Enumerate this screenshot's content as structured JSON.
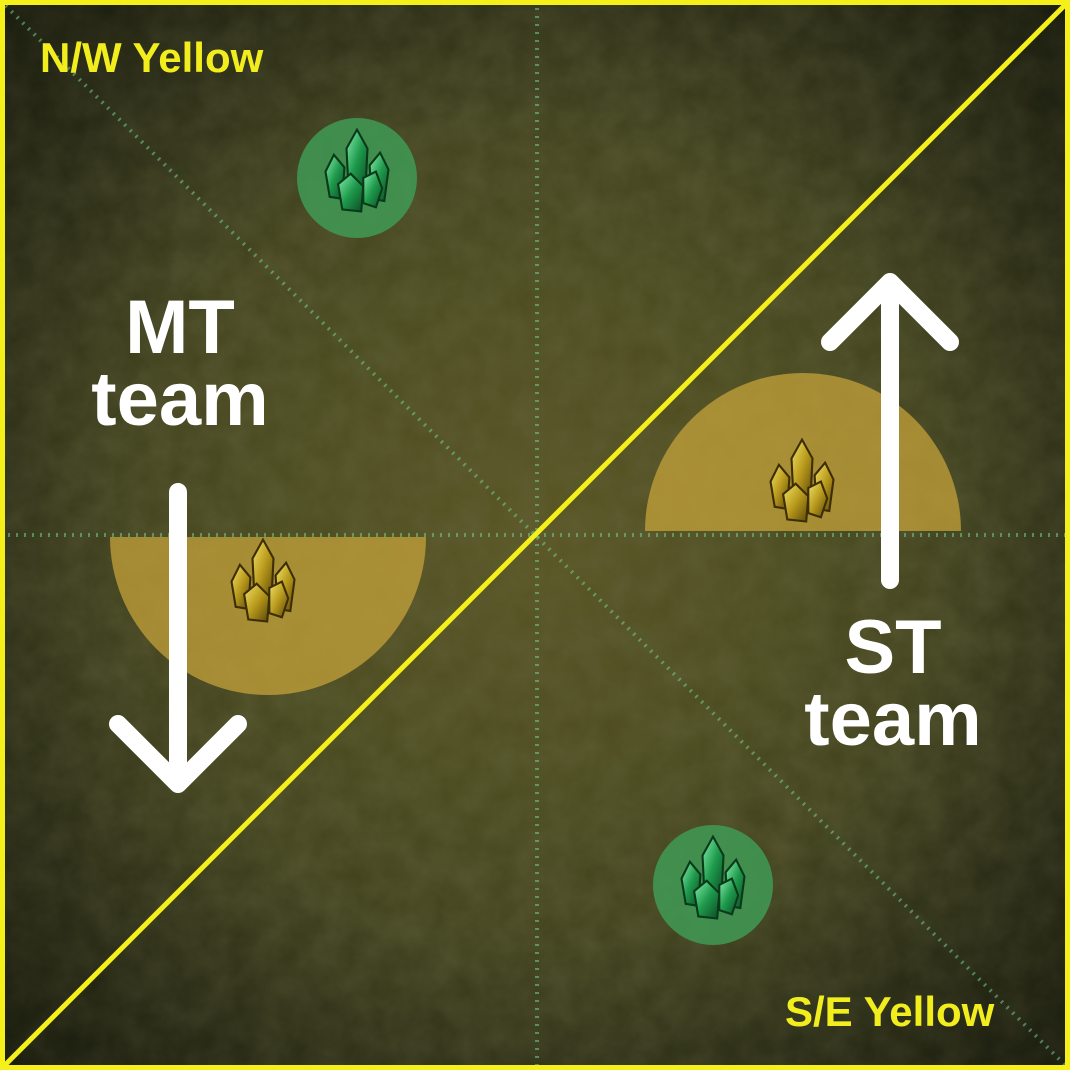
{
  "corner_labels": {
    "north_west": "N/W Yellow",
    "south_east": "S/E Yellow"
  },
  "teams": {
    "mt": {
      "line1": "MT",
      "line2": "team",
      "direction": "down"
    },
    "st": {
      "line1": "ST",
      "line2": "team",
      "direction": "up"
    }
  },
  "markers": [
    {
      "id": "green-crystal-north",
      "kind": "green crystal",
      "icon": "green-crystal-icon"
    },
    {
      "id": "green-crystal-south",
      "kind": "green crystal",
      "icon": "green-crystal-icon"
    },
    {
      "id": "yellow-crystal-west",
      "kind": "yellow crystal",
      "icon": "yellow-crystal-icon",
      "aoe": "half-circle facing south"
    },
    {
      "id": "yellow-crystal-east",
      "kind": "yellow crystal",
      "icon": "yellow-crystal-icon",
      "aoe": "half-circle facing north"
    }
  ],
  "colors": {
    "divider_line": "#f5f01a",
    "border": "#f5f01a",
    "green_marker": "#3f9a55",
    "yellow_aoe": "#c9a53a",
    "arrow": "#ffffff"
  }
}
